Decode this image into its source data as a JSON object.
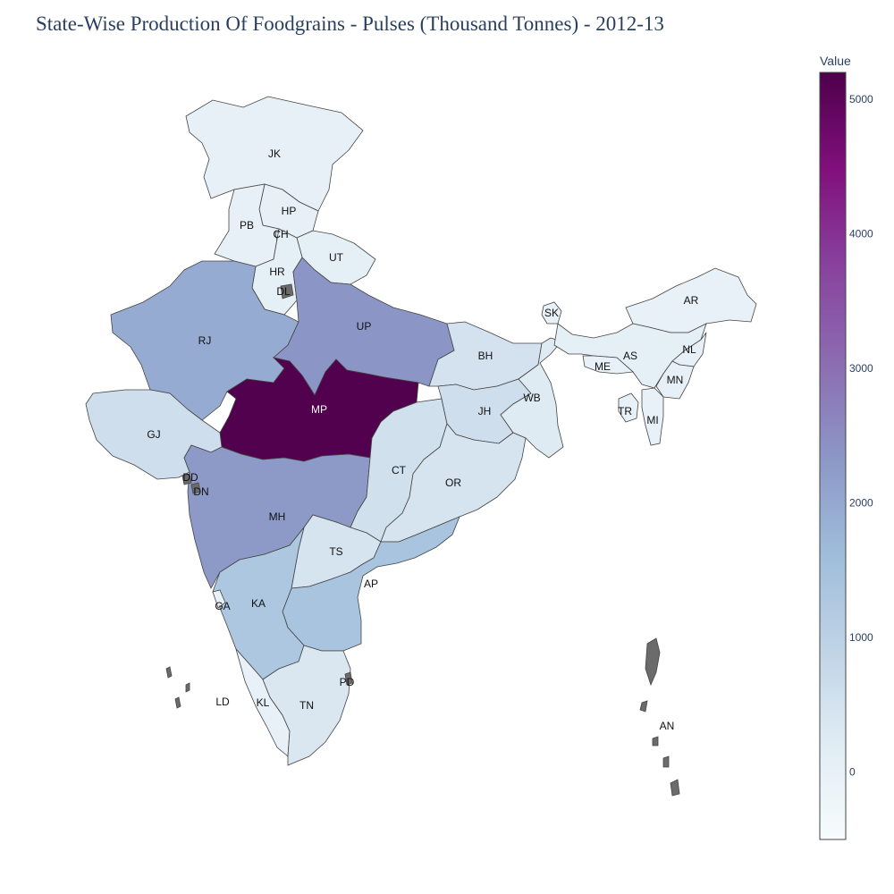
{
  "title": "State-Wise Production Of Foodgrains - Pulses (Thousand Tonnes) - 2012-13",
  "colorbar": {
    "title": "Value",
    "range": [
      -500,
      5200
    ],
    "ticks": [
      "0",
      "1000",
      "2000",
      "3000",
      "4000",
      "5000"
    ],
    "colorscale": [
      "#f7fcfd",
      "#e0ecf4",
      "#bfd3e6",
      "#9ebcda",
      "#8c96c6",
      "#8c6bb1",
      "#88419d",
      "#810f7c",
      "#4d004b"
    ]
  },
  "states": [
    {
      "code": "JK",
      "value": 20
    },
    {
      "code": "HP",
      "value": 40
    },
    {
      "code": "PB",
      "value": 30
    },
    {
      "code": "CH",
      "value": 0
    },
    {
      "code": "HR",
      "value": 70
    },
    {
      "code": "DL",
      "value": null
    },
    {
      "code": "UT",
      "value": 50
    },
    {
      "code": "RJ",
      "value": 1950
    },
    {
      "code": "UP",
      "value": 2350
    },
    {
      "code": "MP",
      "value": 5150
    },
    {
      "code": "GJ",
      "value": 600
    },
    {
      "code": "MH",
      "value": 2300
    },
    {
      "code": "BH",
      "value": 500
    },
    {
      "code": "JH",
      "value": 600
    },
    {
      "code": "WB",
      "value": 250
    },
    {
      "code": "CT",
      "value": 550
    },
    {
      "code": "OR",
      "value": 450
    },
    {
      "code": "TS",
      "value": 450
    },
    {
      "code": "AP",
      "value": 1400
    },
    {
      "code": "KA",
      "value": 1300
    },
    {
      "code": "GA",
      "value": 10
    },
    {
      "code": "KL",
      "value": 5
    },
    {
      "code": "TN",
      "value": 350
    },
    {
      "code": "PD",
      "value": null
    },
    {
      "code": "DD",
      "value": null
    },
    {
      "code": "DN",
      "value": null
    },
    {
      "code": "LD",
      "value": null
    },
    {
      "code": "SK",
      "value": 5
    },
    {
      "code": "AR",
      "value": 10
    },
    {
      "code": "AS",
      "value": 80
    },
    {
      "code": "NL",
      "value": 40
    },
    {
      "code": "ME",
      "value": 5
    },
    {
      "code": "MN",
      "value": 30
    },
    {
      "code": "TR",
      "value": 10
    },
    {
      "code": "MI",
      "value": 5
    },
    {
      "code": "AN",
      "value": null
    }
  ]
}
